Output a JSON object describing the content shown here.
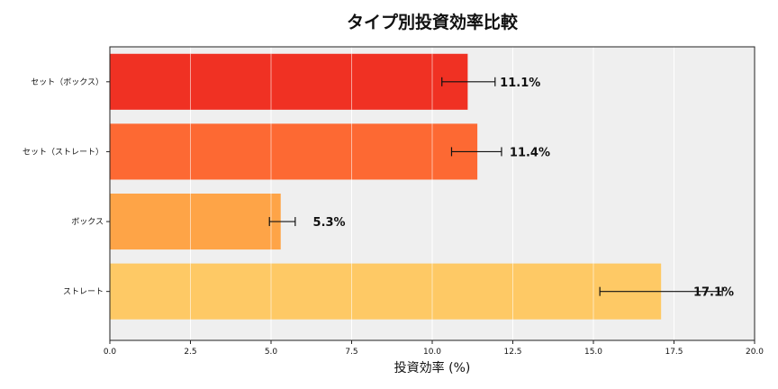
{
  "chart_data": {
    "type": "bar",
    "orientation": "horizontal",
    "title": "タイプ別投資効率比較",
    "xlabel": "投資効率 (%)",
    "ylabel": "",
    "xlim": [
      0,
      20
    ],
    "xticks": [
      "0.0",
      "2.5",
      "5.0",
      "7.5",
      "10.0",
      "12.5",
      "15.0",
      "17.5",
      "20.0"
    ],
    "grid": true,
    "categories": [
      "セット（ボックス）",
      "セット（ストレート）",
      "ボックス",
      "ストレート"
    ],
    "values": [
      11.1,
      11.4,
      5.3,
      17.1
    ],
    "error_low": [
      10.3,
      10.6,
      4.95,
      15.2
    ],
    "error_high": [
      11.95,
      12.15,
      5.75,
      19.0
    ],
    "data_labels": [
      "11.1%",
      "11.4%",
      "5.3%",
      "17.1%"
    ],
    "colors": [
      "#f03123",
      "#fd6933",
      "#fea447",
      "#fec965"
    ],
    "plot_background": "#efefef"
  }
}
